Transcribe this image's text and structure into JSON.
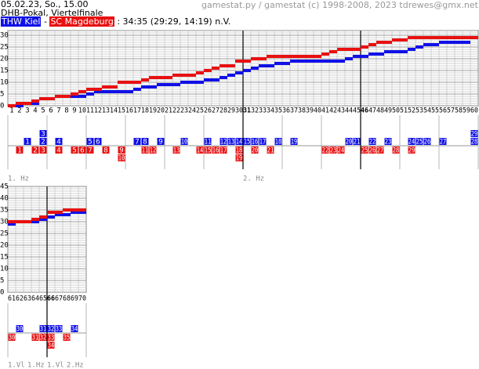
{
  "header": {
    "date": "05.02.23, So., 15.00",
    "competition": "DHB-Pokal, Viertelfinale",
    "home": "THW Kiel",
    "separator": "-",
    "away": "SC Magdeburg",
    "result": ": 34:35 (29:29, 14:19) n.V.",
    "credit": "gamestat.py / gamestat (c) 1998-2008, 2023 tdrewes@gmx.net"
  },
  "teams": [
    {
      "color": "#1010e8",
      "goals": [
        {
          "minute": 3,
          "goal": 1
        },
        {
          "minute": 5,
          "goal": 2
        },
        {
          "minute": 5,
          "goal": 3
        },
        {
          "minute": 7,
          "goal": 4
        },
        {
          "minute": 11,
          "goal": 5
        },
        {
          "minute": 12,
          "goal": 6
        },
        {
          "minute": 17,
          "goal": 7
        },
        {
          "minute": 18,
          "goal": 8
        },
        {
          "minute": 20,
          "goal": 9
        },
        {
          "minute": 23,
          "goal": 10
        },
        {
          "minute": 26,
          "goal": 11
        },
        {
          "minute": 28,
          "goal": 12
        },
        {
          "minute": 29,
          "goal": 13
        },
        {
          "minute": 30,
          "goal": 14
        },
        {
          "minute": 31,
          "goal": 15
        },
        {
          "minute": 32,
          "goal": 16
        },
        {
          "minute": 33,
          "goal": 17
        },
        {
          "minute": 35,
          "goal": 18
        },
        {
          "minute": 37,
          "goal": 19
        },
        {
          "minute": 44,
          "goal": 20
        },
        {
          "minute": 45,
          "goal": 21
        },
        {
          "minute": 47,
          "goal": 22
        },
        {
          "minute": 49,
          "goal": 23
        },
        {
          "minute": 52,
          "goal": 24
        },
        {
          "minute": 53,
          "goal": 25
        },
        {
          "minute": 54,
          "goal": 26
        },
        {
          "minute": 56,
          "goal": 27
        },
        {
          "minute": 60,
          "goal": 28
        },
        {
          "minute": 60,
          "goal": 29
        },
        {
          "minute": 62,
          "goal": 30
        },
        {
          "minute": 65,
          "goal": 31
        },
        {
          "minute": 66,
          "goal": 32
        },
        {
          "minute": 67,
          "goal": 33
        },
        {
          "minute": 69,
          "goal": 34
        }
      ]
    },
    {
      "color": "#e81010",
      "goals": [
        {
          "minute": 2,
          "goal": 1
        },
        {
          "minute": 4,
          "goal": 2
        },
        {
          "minute": 5,
          "goal": 3
        },
        {
          "minute": 7,
          "goal": 4
        },
        {
          "minute": 9,
          "goal": 5
        },
        {
          "minute": 10,
          "goal": 6
        },
        {
          "minute": 11,
          "goal": 7
        },
        {
          "minute": 13,
          "goal": 8
        },
        {
          "minute": 15,
          "goal": 9
        },
        {
          "minute": 15,
          "goal": 10
        },
        {
          "minute": 18,
          "goal": 11
        },
        {
          "minute": 19,
          "goal": 12
        },
        {
          "minute": 22,
          "goal": 13
        },
        {
          "minute": 25,
          "goal": 14
        },
        {
          "minute": 26,
          "goal": 15
        },
        {
          "minute": 27,
          "goal": 16
        },
        {
          "minute": 28,
          "goal": 17
        },
        {
          "minute": 30,
          "goal": 18
        },
        {
          "minute": 30,
          "goal": 19
        },
        {
          "minute": 32,
          "goal": 20
        },
        {
          "minute": 34,
          "goal": 21
        },
        {
          "minute": 41,
          "goal": 22
        },
        {
          "minute": 42,
          "goal": 23
        },
        {
          "minute": 43,
          "goal": 24
        },
        {
          "minute": 46,
          "goal": 25
        },
        {
          "minute": 47,
          "goal": 26
        },
        {
          "minute": 48,
          "goal": 27
        },
        {
          "minute": 50,
          "goal": 28
        },
        {
          "minute": 52,
          "goal": 29
        },
        {
          "minute": 61,
          "goal": 30
        },
        {
          "minute": 64,
          "goal": 31
        },
        {
          "minute": 65,
          "goal": 32
        },
        {
          "minute": 66,
          "goal": 33
        },
        {
          "minute": 66,
          "goal": 34
        },
        {
          "minute": 68,
          "goal": 35
        }
      ]
    }
  ],
  "chart_data": [
    {
      "type": "step",
      "xlim": [
        0,
        60
      ],
      "ylim": [
        0,
        32
      ],
      "yticks": [
        0,
        5,
        10,
        15,
        20,
        25,
        30
      ],
      "xticks": [
        1,
        2,
        3,
        4,
        5,
        6,
        7,
        8,
        9,
        10,
        11,
        12,
        13,
        14,
        15,
        16,
        17,
        18,
        19,
        20,
        21,
        22,
        23,
        24,
        25,
        26,
        27,
        28,
        29,
        30,
        31,
        32,
        33,
        34,
        35,
        36,
        37,
        38,
        39,
        40,
        41,
        42,
        43,
        44,
        45,
        46,
        47,
        48,
        49,
        50,
        51,
        52,
        53,
        54,
        55,
        56,
        57,
        58,
        59,
        60
      ],
      "emphasized_ticks": [
        31,
        46
      ],
      "grid": true,
      "period_labels": [
        "1. Hz",
        "2. Hz"
      ]
    },
    {
      "type": "step",
      "xlim": [
        60,
        70
      ],
      "ylim": [
        0,
        45
      ],
      "yticks": [
        0,
        5,
        10,
        15,
        20,
        25,
        30,
        35,
        40,
        45
      ],
      "xticks": [
        61,
        62,
        63,
        64,
        65,
        66,
        67,
        68,
        69,
        70
      ],
      "emphasized_ticks": [
        66
      ],
      "grid": true,
      "period_labels": [
        "1.Vl",
        "1.Hz",
        "1.Vl",
        "2.Hz"
      ]
    }
  ]
}
